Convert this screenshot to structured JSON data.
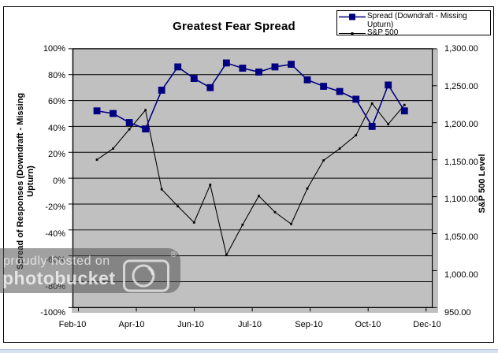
{
  "title": "Greatest Fear Spread",
  "legend": {
    "spread_line1": "Spread (Downdraft - Missing",
    "spread_line2": "Upturn)",
    "sp500": "S&P 500"
  },
  "axes": {
    "left": {
      "title_line1": "Spread of Responses (Downdraft - Missing",
      "title_line2": "Upturn)",
      "ticks": [
        "100%",
        "80%",
        "60%",
        "40%",
        "20%",
        "0%",
        "-20%",
        "-40%",
        "-60%",
        "-80%",
        "-100%"
      ]
    },
    "right": {
      "title": "S&P 500 Level",
      "ticks": [
        "1,300.00",
        "1,250.00",
        "1,200.00",
        "1,150.00",
        "1,100.00",
        "1,050.00",
        "1,000.00",
        "950.00"
      ]
    },
    "x": {
      "ticks": [
        "Feb-10",
        "Apr-10",
        "Jun-10",
        "Jul-10",
        "Sep-10",
        "Oct-10",
        "Dec-10"
      ]
    }
  },
  "watermark": {
    "line1": "proudly hosted on",
    "line2": "photobucket",
    "registered": "®"
  },
  "colors": {
    "spread": "#000080",
    "sp500": "#000000",
    "plot_background": "#c0c0c0",
    "gridline": "#000000",
    "page_strip": "#d7e2f0"
  },
  "chart_data": {
    "type": "line",
    "title": "Greatest Fear Spread",
    "x_tick_labels": [
      "Feb-10",
      "Apr-10",
      "Jun-10",
      "Jul-10",
      "Sep-10",
      "Oct-10",
      "Dec-10"
    ],
    "left_axis": {
      "label": "Spread of Responses (Downdraft - Missing Upturn)",
      "range_pct": [
        -100,
        100
      ],
      "tick_step_pct": 20,
      "format": "percent"
    },
    "right_axis": {
      "label": "S&P 500 Level",
      "range": [
        950,
        1300
      ],
      "tick_step": 50
    },
    "grid": "horizontal",
    "plot_background": "gray",
    "legend_position": "top-right",
    "series": [
      {
        "name": "Spread (Downdraft - Missing Upturn)",
        "axis": "left",
        "color": "#000080",
        "marker": "square",
        "values_pct": [
          52,
          50,
          43,
          38,
          68,
          86,
          77,
          70,
          89,
          85,
          82,
          86,
          88,
          76,
          71,
          67,
          61,
          40,
          72,
          52
        ]
      },
      {
        "name": "S&P 500",
        "axis": "right",
        "color": "#000000",
        "marker": "dot",
        "values": [
          1150,
          1165,
          1191,
          1217,
          1110,
          1087,
          1065,
          1116,
          1021,
          1062,
          1101,
          1079,
          1063,
          1111,
          1149,
          1165,
          1183,
          1226,
          1198,
          1224
        ]
      }
    ]
  }
}
